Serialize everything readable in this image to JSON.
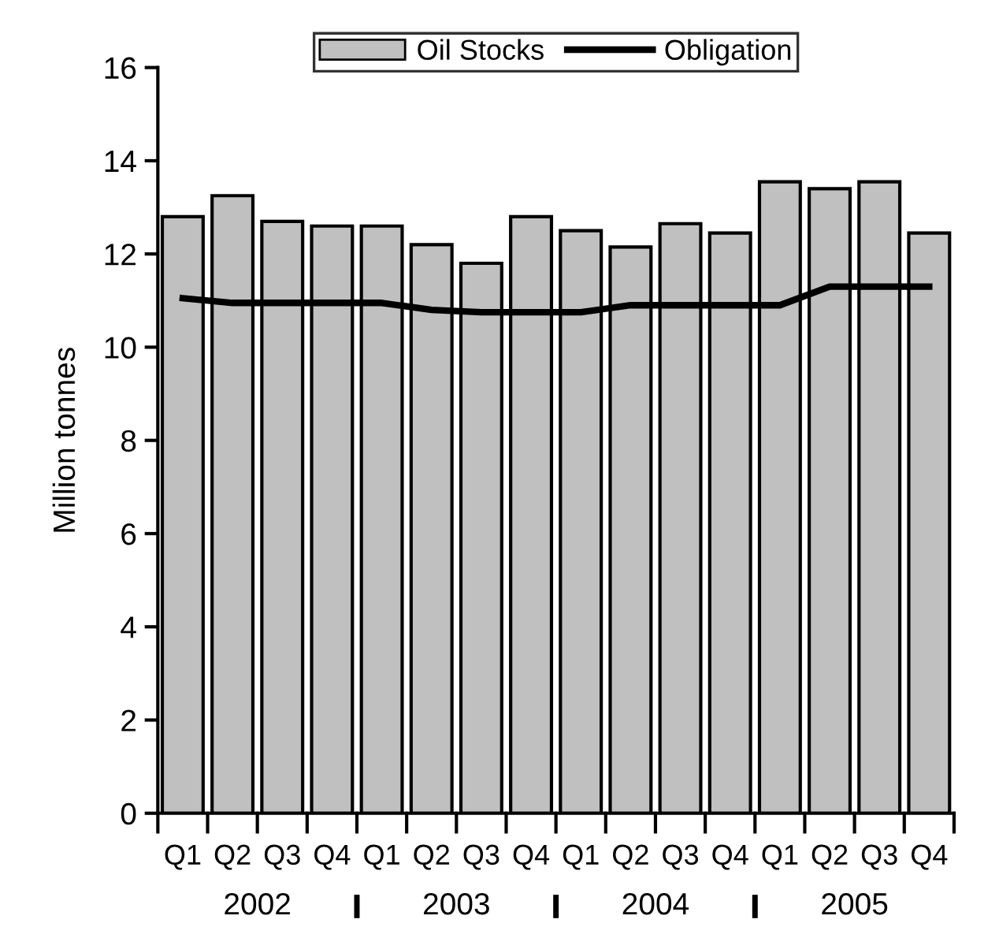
{
  "chart_data": {
    "type": "bar",
    "categories": [
      "Q1",
      "Q2",
      "Q3",
      "Q4",
      "Q1",
      "Q2",
      "Q3",
      "Q4",
      "Q1",
      "Q2",
      "Q3",
      "Q4",
      "Q1",
      "Q2",
      "Q3",
      "Q4"
    ],
    "series": [
      {
        "name": "Oil Stocks",
        "color": "#c0c0c0",
        "values": [
          12.8,
          13.25,
          12.7,
          12.6,
          12.6,
          12.2,
          11.8,
          12.8,
          12.5,
          12.15,
          12.65,
          12.45,
          13.55,
          13.4,
          13.55,
          12.45
        ]
      },
      {
        "name": "Obligation",
        "type": "line",
        "color": "#000000",
        "values": [
          11.05,
          10.95,
          10.95,
          10.95,
          10.95,
          10.8,
          10.75,
          10.75,
          10.75,
          10.9,
          10.9,
          10.9,
          10.9,
          11.3,
          11.3,
          11.3
        ]
      }
    ],
    "annotations": [
      "2002",
      "2003",
      "2004",
      "2005"
    ],
    "ylabel": "Million tonnes",
    "ylim": [
      0,
      16
    ],
    "yticks": [
      0,
      2,
      4,
      6,
      8,
      10,
      12,
      14,
      16
    ],
    "grid": false,
    "legend": "top",
    "marker": "none",
    "line_style": "solid"
  }
}
